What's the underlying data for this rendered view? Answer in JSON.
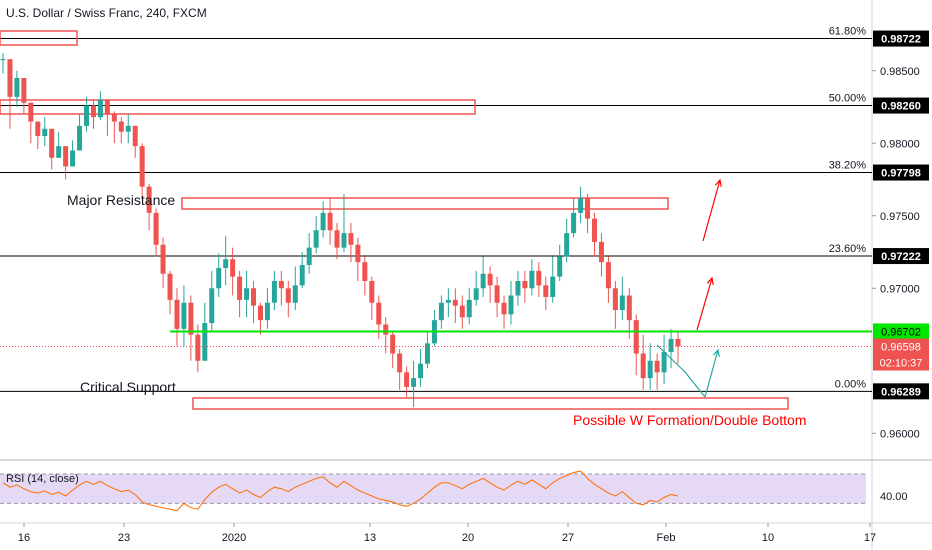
{
  "header": {
    "title": "U.S. Dollar / Swiss Franc, 240, FXCM"
  },
  "colors": {
    "up": "#26a69a",
    "down": "#ef5350",
    "level_line": "#000000",
    "support_green": "#00e600",
    "box_red": "#ef5350",
    "rsi_line": "#ff6d00",
    "rsi_band": "#e6d9f5",
    "current_price_bg": "#ef5350",
    "annotation_red": "#ff0000",
    "projection_teal": "#26a6a0"
  },
  "annotations": {
    "major_resistance": "Major Resistance",
    "critical_support": "Critical Support",
    "w_formation": "Possible W Formation/Double Bottom"
  },
  "chart_data": [
    {
      "type": "candlestick",
      "symbol": "U.S. Dollar / Swiss Franc",
      "interval": "240",
      "source": "FXCM",
      "x_ticks": [
        "16",
        "23",
        "2020",
        "13",
        "20",
        "27",
        "Feb",
        "10",
        "17"
      ],
      "y_ticks": [
        "0.98500",
        "0.98000",
        "0.97500",
        "0.97000",
        "0.96000"
      ],
      "ylim": [
        0.9585,
        0.9885
      ],
      "fib_levels": [
        {
          "pct": "61.80%",
          "value": 0.98722,
          "label": "0.98722"
        },
        {
          "pct": "50.00%",
          "value": 0.9826,
          "label": "0.98260"
        },
        {
          "pct": "38.20%",
          "value": 0.97798,
          "label": "0.97798"
        },
        {
          "pct": "23.60%",
          "value": 0.97222,
          "label": "0.97222"
        },
        {
          "pct": "0.00%",
          "value": 0.96289,
          "label": "0.96289"
        }
      ],
      "support_line": {
        "value": 0.96702,
        "label": "0.96702"
      },
      "current_price": {
        "value": 0.96598,
        "label": "0.96598",
        "countdown": "02:10:37"
      },
      "price_path": [
        [
          0.9858,
          0.9862,
          0.9848
        ],
        [
          0.9832,
          0.9835,
          0.981
        ],
        [
          0.9845,
          0.985,
          0.9825
        ],
        [
          0.9828,
          0.9842,
          0.982
        ],
        [
          0.9815,
          0.9828,
          0.98
        ],
        [
          0.9805,
          0.9812,
          0.9796
        ],
        [
          0.981,
          0.9818,
          0.9798
        ],
        [
          0.979,
          0.98,
          0.9782
        ],
        [
          0.9798,
          0.9808,
          0.979
        ],
        [
          0.9784,
          0.9792,
          0.9775
        ],
        [
          0.9795,
          0.9802,
          0.9784
        ],
        [
          0.9812,
          0.982,
          0.98
        ],
        [
          0.9826,
          0.9832,
          0.9808
        ],
        [
          0.9818,
          0.983,
          0.981
        ],
        [
          0.983,
          0.9836,
          0.9816
        ],
        [
          0.982,
          0.9828,
          0.9805
        ],
        [
          0.9815,
          0.9822,
          0.98
        ],
        [
          0.9808,
          0.9818,
          0.98
        ],
        [
          0.9812,
          0.982,
          0.98
        ],
        [
          0.9798,
          0.9812,
          0.979
        ],
        [
          0.977,
          0.98,
          0.9762
        ],
        [
          0.9752,
          0.9772,
          0.974
        ],
        [
          0.973,
          0.9755,
          0.9722
        ],
        [
          0.971,
          0.9735,
          0.97
        ],
        [
          0.9692,
          0.9712,
          0.9682
        ],
        [
          0.9672,
          0.97,
          0.966
        ],
        [
          0.969,
          0.9702,
          0.966
        ],
        [
          0.9668,
          0.9695,
          0.965
        ],
        [
          0.965,
          0.9675,
          0.9642
        ],
        [
          0.9676,
          0.969,
          0.965
        ],
        [
          0.97,
          0.9712,
          0.967
        ],
        [
          0.9714,
          0.9724,
          0.9694
        ],
        [
          0.972,
          0.9736,
          0.9702
        ],
        [
          0.9708,
          0.9728,
          0.9695
        ],
        [
          0.9692,
          0.9712,
          0.968
        ],
        [
          0.97,
          0.9712,
          0.968
        ],
        [
          0.9688,
          0.9705,
          0.9676
        ],
        [
          0.9678,
          0.969,
          0.9668
        ],
        [
          0.969,
          0.97,
          0.9672
        ],
        [
          0.9705,
          0.9712,
          0.9685
        ],
        [
          0.97,
          0.9712,
          0.9688
        ],
        [
          0.969,
          0.9705,
          0.968
        ],
        [
          0.9702,
          0.9715,
          0.9685
        ],
        [
          0.9716,
          0.9725,
          0.97
        ],
        [
          0.9728,
          0.9738,
          0.971
        ],
        [
          0.974,
          0.975,
          0.9724
        ],
        [
          0.9752,
          0.976,
          0.9735
        ],
        [
          0.974,
          0.9762,
          0.973
        ],
        [
          0.9728,
          0.9745,
          0.972
        ],
        [
          0.9738,
          0.9765,
          0.9725
        ],
        [
          0.973,
          0.9745,
          0.9718
        ],
        [
          0.9718,
          0.9735,
          0.9705
        ],
        [
          0.9705,
          0.9722,
          0.9695
        ],
        [
          0.969,
          0.9708,
          0.9678
        ],
        [
          0.9675,
          0.9695,
          0.9665
        ],
        [
          0.9668,
          0.968,
          0.9655
        ],
        [
          0.9655,
          0.967,
          0.9645
        ],
        [
          0.9642,
          0.9658,
          0.963
        ],
        [
          0.9632,
          0.9646,
          0.9625
        ],
        [
          0.9638,
          0.965,
          0.9618
        ],
        [
          0.9648,
          0.9658,
          0.9632
        ],
        [
          0.9662,
          0.967,
          0.9645
        ],
        [
          0.9678,
          0.9685,
          0.966
        ],
        [
          0.969,
          0.9695,
          0.9672
        ],
        [
          0.9692,
          0.97,
          0.968
        ],
        [
          0.9688,
          0.97,
          0.9676
        ],
        [
          0.968,
          0.9695,
          0.9672
        ],
        [
          0.9692,
          0.97,
          0.9675
        ],
        [
          0.97,
          0.9712,
          0.9688
        ],
        [
          0.971,
          0.9722,
          0.9694
        ],
        [
          0.9702,
          0.9715,
          0.969
        ],
        [
          0.969,
          0.9708,
          0.968
        ],
        [
          0.9682,
          0.9695,
          0.9672
        ],
        [
          0.9695,
          0.9705,
          0.9675
        ],
        [
          0.9705,
          0.9712,
          0.9688
        ],
        [
          0.97,
          0.9712,
          0.969
        ],
        [
          0.9712,
          0.972,
          0.9695
        ],
        [
          0.9702,
          0.9718,
          0.9694
        ],
        [
          0.9694,
          0.9708,
          0.9685
        ],
        [
          0.9708,
          0.9722,
          0.969
        ],
        [
          0.9722,
          0.973,
          0.9705
        ],
        [
          0.9738,
          0.9748,
          0.9718
        ],
        [
          0.9752,
          0.9762,
          0.9735
        ],
        [
          0.9762,
          0.977,
          0.9745
        ],
        [
          0.9748,
          0.9765,
          0.9738
        ],
        [
          0.9732,
          0.9752,
          0.9722
        ],
        [
          0.9718,
          0.9738,
          0.9708
        ],
        [
          0.97,
          0.9722,
          0.969
        ],
        [
          0.9685,
          0.9705,
          0.9672
        ],
        [
          0.9695,
          0.9708,
          0.9678
        ],
        [
          0.9678,
          0.97,
          0.9665
        ],
        [
          0.9655,
          0.9682,
          0.964
        ],
        [
          0.9638,
          0.9668,
          0.963
        ],
        [
          0.965,
          0.9662,
          0.963
        ],
        [
          0.9642,
          0.9655,
          0.963
        ],
        [
          0.9656,
          0.9668,
          0.9634
        ],
        [
          0.9665,
          0.9672,
          0.9645
        ],
        [
          0.966,
          0.967,
          0.9648
        ]
      ],
      "rsi": {
        "label": "RSI (14, close)",
        "value_label": "40.00",
        "series": [
          58,
          52,
          55,
          50,
          46,
          44,
          47,
          42,
          45,
          40,
          48,
          55,
          60,
          56,
          60,
          54,
          50,
          46,
          48,
          42,
          32,
          28,
          26,
          24,
          22,
          20,
          30,
          24,
          22,
          35,
          45,
          52,
          56,
          50,
          44,
          48,
          42,
          38,
          46,
          52,
          50,
          46,
          52,
          56,
          60,
          64,
          66,
          58,
          52,
          60,
          54,
          48,
          44,
          40,
          36,
          34,
          32,
          28,
          26,
          30,
          36,
          44,
          52,
          58,
          58,
          54,
          50,
          56,
          60,
          64,
          58,
          52,
          48,
          55,
          60,
          56,
          62,
          56,
          50,
          58,
          64,
          68,
          72,
          74,
          64,
          56,
          50,
          44,
          40,
          46,
          38,
          30,
          28,
          34,
          32,
          38,
          42,
          40
        ],
        "ylim": [
          10,
          85
        ],
        "bands": [
          70,
          30
        ]
      }
    }
  ]
}
